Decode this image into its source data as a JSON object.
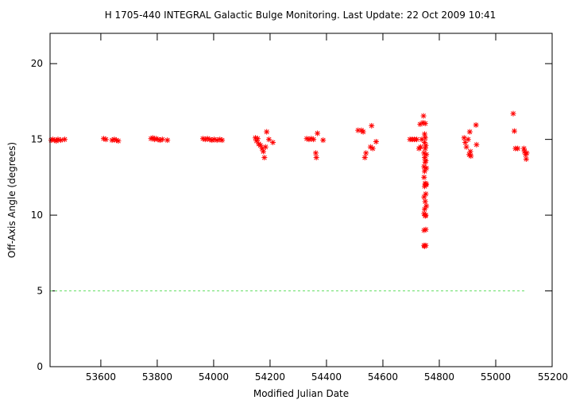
{
  "chart_data": {
    "type": "scatter",
    "title": "H 1705-440   INTEGRAL Galactic Bulge Monitoring.  Last Update: 22 Oct 2009 10:41",
    "xlabel": "Modified Julian Date",
    "ylabel": "Off-Axis Angle (degrees)",
    "xlim": [
      53420,
      55200
    ],
    "ylim": [
      0,
      22
    ],
    "x_ticks": [
      53600,
      53800,
      54000,
      54200,
      54400,
      54600,
      54800,
      55000,
      55200
    ],
    "y_ticks": [
      0,
      5,
      10,
      15,
      20
    ],
    "grid": false,
    "reference_line": {
      "y": 5,
      "color": "#66dd66",
      "style": "dashed"
    },
    "marker": {
      "symbol": "asterisk",
      "color": "#ff0000"
    },
    "points": [
      [
        53424,
        14.95
      ],
      [
        53430,
        15.0
      ],
      [
        53436,
        14.95
      ],
      [
        53442,
        14.9
      ],
      [
        53448,
        15.0
      ],
      [
        53458,
        14.95
      ],
      [
        53472,
        15.0
      ],
      [
        53610,
        15.05
      ],
      [
        53618,
        15.0
      ],
      [
        53640,
        14.95
      ],
      [
        53648,
        15.0
      ],
      [
        53655,
        14.95
      ],
      [
        53662,
        14.9
      ],
      [
        53778,
        15.05
      ],
      [
        53784,
        15.1
      ],
      [
        53790,
        15.0
      ],
      [
        53796,
        15.05
      ],
      [
        53802,
        15.0
      ],
      [
        53810,
        14.95
      ],
      [
        53818,
        15.0
      ],
      [
        53836,
        14.95
      ],
      [
        53962,
        15.05
      ],
      [
        53970,
        15.0
      ],
      [
        53978,
        15.05
      ],
      [
        53986,
        15.0
      ],
      [
        53994,
        14.95
      ],
      [
        54002,
        15.0
      ],
      [
        54012,
        14.95
      ],
      [
        54022,
        15.0
      ],
      [
        54030,
        14.95
      ],
      [
        54148,
        15.1
      ],
      [
        54152,
        14.9
      ],
      [
        54156,
        15.05
      ],
      [
        54160,
        14.7
      ],
      [
        54166,
        14.6
      ],
      [
        54172,
        14.4
      ],
      [
        54176,
        14.2
      ],
      [
        54180,
        13.8
      ],
      [
        54184,
        14.5
      ],
      [
        54188,
        15.5
      ],
      [
        54196,
        15.0
      ],
      [
        54210,
        14.8
      ],
      [
        54330,
        15.05
      ],
      [
        54338,
        15.0
      ],
      [
        54346,
        15.05
      ],
      [
        54354,
        15.0
      ],
      [
        54362,
        14.1
      ],
      [
        54364,
        13.8
      ],
      [
        54368,
        15.4
      ],
      [
        54388,
        14.95
      ],
      [
        54512,
        15.6
      ],
      [
        54524,
        15.6
      ],
      [
        54530,
        15.5
      ],
      [
        54536,
        13.8
      ],
      [
        54540,
        14.1
      ],
      [
        54556,
        14.5
      ],
      [
        54560,
        15.9
      ],
      [
        54564,
        14.4
      ],
      [
        54576,
        14.85
      ],
      [
        54696,
        15.0
      ],
      [
        54704,
        15.0
      ],
      [
        54712,
        15.0
      ],
      [
        54720,
        15.0
      ],
      [
        54728,
        14.4
      ],
      [
        54732,
        16.0
      ],
      [
        54734,
        14.5
      ],
      [
        54738,
        15.0
      ],
      [
        54742,
        16.1
      ],
      [
        54744,
        16.55
      ],
      [
        54746,
        14.1
      ],
      [
        54746,
        13.2
      ],
      [
        54746,
        12.5
      ],
      [
        54746,
        11.2
      ],
      [
        54746,
        10.1
      ],
      [
        54746,
        9.0
      ],
      [
        54746,
        8.0
      ],
      [
        54748,
        15.35
      ],
      [
        54748,
        14.8
      ],
      [
        54748,
        13.8
      ],
      [
        54748,
        12.9
      ],
      [
        54748,
        11.9
      ],
      [
        54748,
        10.4
      ],
      [
        54748,
        7.95
      ],
      [
        54750,
        16.05
      ],
      [
        54750,
        15.1
      ],
      [
        54750,
        14.4
      ],
      [
        54750,
        13.5
      ],
      [
        54750,
        12.1
      ],
      [
        54750,
        10.9
      ],
      [
        54750,
        9.95
      ],
      [
        54752,
        14.6
      ],
      [
        54752,
        13.6
      ],
      [
        54752,
        12.0
      ],
      [
        54752,
        11.4
      ],
      [
        54752,
        10.0
      ],
      [
        54752,
        9.05
      ],
      [
        54752,
        8.0
      ],
      [
        54754,
        14.0
      ],
      [
        54754,
        13.1
      ],
      [
        54754,
        12.05
      ],
      [
        54754,
        10.6
      ],
      [
        54888,
        15.1
      ],
      [
        54892,
        14.8
      ],
      [
        54896,
        14.5
      ],
      [
        54902,
        15.0
      ],
      [
        54906,
        14.0
      ],
      [
        54908,
        15.5
      ],
      [
        54910,
        14.2
      ],
      [
        54912,
        13.9
      ],
      [
        54930,
        15.95
      ],
      [
        54932,
        14.65
      ],
      [
        55062,
        16.7
      ],
      [
        55066,
        15.55
      ],
      [
        55070,
        14.4
      ],
      [
        55078,
        14.4
      ],
      [
        55100,
        14.4
      ],
      [
        55102,
        14.2
      ],
      [
        55106,
        14.0
      ],
      [
        55108,
        13.7
      ],
      [
        55110,
        14.1
      ]
    ]
  }
}
